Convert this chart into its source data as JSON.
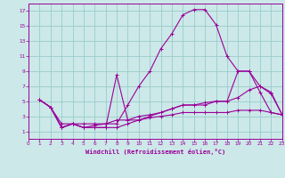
{
  "bg_color": "#cce8e8",
  "line_color": "#990099",
  "grid_color": "#99cccc",
  "xlabel": "Windchill (Refroidissement éolien,°C)",
  "xlim": [
    0,
    23
  ],
  "ylim": [
    0,
    18
  ],
  "xticks": [
    0,
    1,
    2,
    3,
    4,
    5,
    6,
    7,
    8,
    9,
    10,
    11,
    12,
    13,
    14,
    15,
    16,
    17,
    18,
    19,
    20,
    21,
    22,
    23
  ],
  "yticks": [
    1,
    3,
    5,
    7,
    9,
    11,
    13,
    15,
    17
  ],
  "lines": [
    {
      "x": [
        1,
        2,
        3,
        4,
        5,
        6,
        7,
        8,
        9,
        10,
        11,
        12,
        13,
        14,
        15,
        16,
        17,
        18,
        19,
        20,
        21,
        22,
        23
      ],
      "y": [
        5.2,
        4.2,
        2.0,
        2.0,
        2.0,
        2.0,
        2.0,
        2.0,
        4.5,
        7.0,
        9.0,
        12.0,
        14.0,
        16.5,
        17.2,
        17.2,
        15.2,
        11.0,
        9.0,
        9.0,
        6.2,
        3.5,
        3.2
      ]
    },
    {
      "x": [
        1,
        2,
        3,
        4,
        5,
        6,
        7,
        8,
        9,
        10,
        11,
        12,
        13,
        14,
        15,
        16,
        17,
        18,
        19,
        20,
        21,
        22,
        23
      ],
      "y": [
        5.2,
        4.2,
        1.5,
        2.0,
        1.5,
        1.5,
        1.5,
        8.5,
        2.5,
        2.5,
        3.0,
        3.5,
        4.0,
        4.5,
        4.5,
        4.5,
        5.0,
        5.0,
        9.0,
        9.0,
        7.0,
        6.2,
        3.2
      ]
    },
    {
      "x": [
        1,
        2,
        3,
        4,
        5,
        6,
        7,
        8,
        9,
        10,
        11,
        12,
        13,
        14,
        15,
        16,
        17,
        18,
        19,
        20,
        21,
        22,
        23
      ],
      "y": [
        5.2,
        4.2,
        1.5,
        2.0,
        1.5,
        1.8,
        2.0,
        2.5,
        2.5,
        3.0,
        3.2,
        3.5,
        4.0,
        4.5,
        4.5,
        4.8,
        5.0,
        5.0,
        5.5,
        6.5,
        7.0,
        6.0,
        3.2
      ]
    },
    {
      "x": [
        1,
        2,
        3,
        4,
        5,
        6,
        7,
        8,
        9,
        10,
        11,
        12,
        13,
        14,
        15,
        16,
        17,
        18,
        19,
        20,
        21,
        22,
        23
      ],
      "y": [
        5.2,
        4.2,
        1.5,
        2.0,
        1.5,
        1.5,
        1.5,
        1.5,
        2.0,
        2.5,
        2.8,
        3.0,
        3.2,
        3.5,
        3.5,
        3.5,
        3.5,
        3.5,
        3.8,
        3.8,
        3.8,
        3.5,
        3.2
      ]
    }
  ]
}
